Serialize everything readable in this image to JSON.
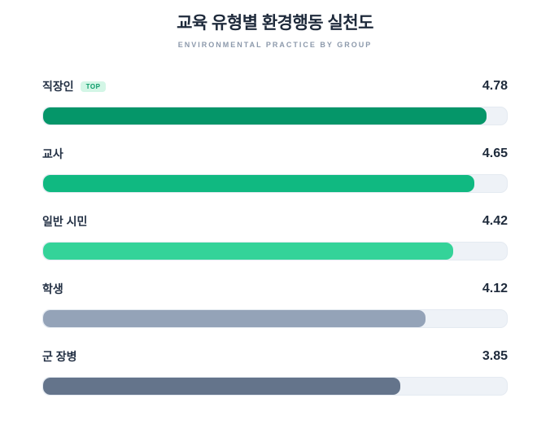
{
  "header": {
    "title": "교육 유형별 환경행동 실천도",
    "subtitle": "ENVIRONMENTAL PRACTICE BY GROUP"
  },
  "chart_data": {
    "type": "bar",
    "orientation": "horizontal",
    "title": "교육 유형별 환경행동 실천도",
    "subtitle": "ENVIRONMENTAL PRACTICE BY GROUP",
    "categories": [
      "직장인",
      "교사",
      "일반 시민",
      "학생",
      "군 장병"
    ],
    "values": [
      4.78,
      4.65,
      4.42,
      4.12,
      3.85
    ],
    "value_labels": [
      "4.78",
      "4.65",
      "4.42",
      "4.12",
      "3.85"
    ],
    "xlim": [
      0,
      5
    ],
    "grid": false,
    "legend": false,
    "badges": [
      {
        "row_index": 0,
        "label": "TOP"
      }
    ],
    "bar_colors": [
      "#059669",
      "#10b981",
      "#34d399",
      "#94a3b8",
      "#64748b"
    ],
    "track_color": "#eef2f7"
  },
  "colors": {
    "title_text": "#1e2a3b",
    "subtitle_text": "#8c99ab",
    "label_text": "#233044",
    "value_text": "#1e2a3b",
    "badge_bg": "#d3f6e6",
    "badge_text": "#0a9a68",
    "track_bg": "#eef2f7",
    "track_border": "#e4eaf1"
  }
}
